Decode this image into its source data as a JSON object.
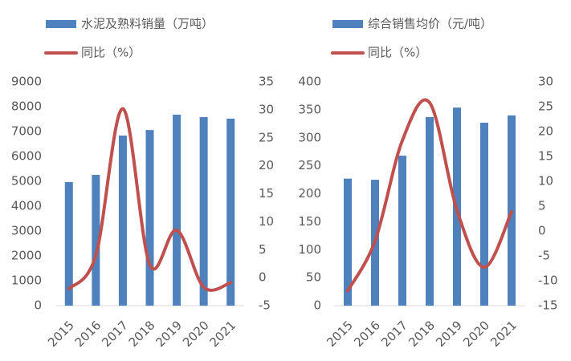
{
  "chart_data": [
    {
      "type": "bar",
      "categories": [
        "2015",
        "2016",
        "2017",
        "2018",
        "2019",
        "2020",
        "2021"
      ],
      "series": [
        {
          "name": "水泥及熟料销量（万吨）",
          "color": "#4f81bd",
          "values": [
            4970,
            5260,
            6840,
            7060,
            7680,
            7580,
            7520
          ]
        },
        {
          "name": "同比（%）",
          "color": "#c0504d",
          "type": "line",
          "axis": "y2",
          "values": [
            -2,
            4,
            30.2,
            2.3,
            8.5,
            -1.7,
            -0.9
          ]
        }
      ],
      "ylim": [
        0,
        9000
      ],
      "yticks": [
        0,
        1000,
        2000,
        3000,
        4000,
        5000,
        6000,
        7000,
        8000,
        9000
      ],
      "y2lim": [
        -5,
        35
      ],
      "y2ticks": [
        -5,
        0,
        5,
        10,
        15,
        20,
        25,
        30,
        35
      ],
      "legend": "top",
      "grid": false
    },
    {
      "type": "bar",
      "categories": [
        "2015",
        "2016",
        "2017",
        "2018",
        "2019",
        "2020",
        "2021"
      ],
      "series": [
        {
          "name": "综合销售均价（元/吨）",
          "color": "#4f81bd",
          "values": [
            227,
            225,
            268,
            337,
            354,
            327,
            340
          ]
        },
        {
          "name": "同比（%）",
          "color": "#c0504d",
          "type": "line",
          "axis": "y2",
          "values": [
            -12,
            -2,
            18.2,
            25.8,
            4.2,
            -7.3,
            3.9
          ]
        }
      ],
      "ylim": [
        0,
        400
      ],
      "yticks": [
        0,
        50,
        100,
        150,
        200,
        250,
        300,
        350,
        400
      ],
      "y2lim": [
        -15,
        30
      ],
      "y2ticks": [
        -15,
        -10,
        -5,
        0,
        5,
        10,
        15,
        20,
        25,
        30
      ],
      "legend": "top",
      "grid": false
    }
  ]
}
